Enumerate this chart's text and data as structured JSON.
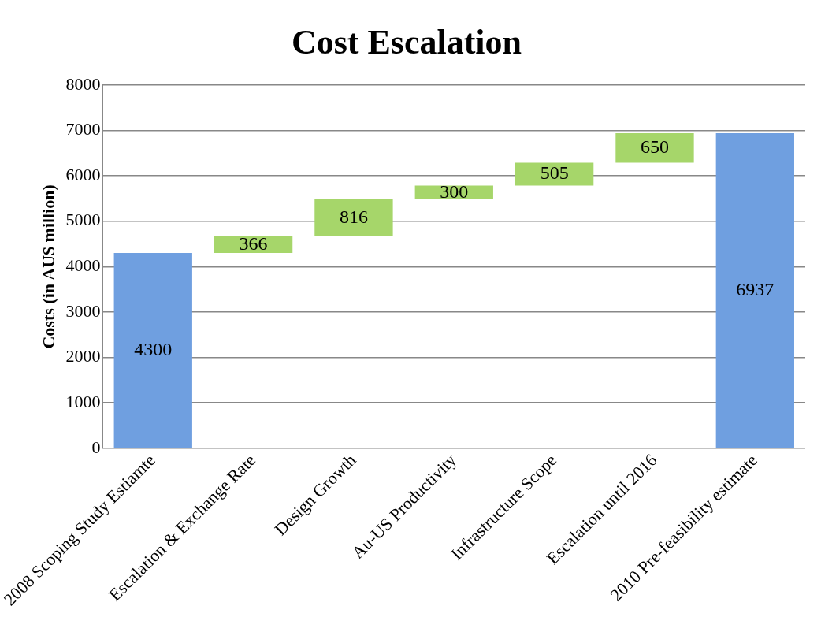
{
  "chart_data": {
    "type": "bar",
    "title": "Cost Escalation",
    "ylabel": "Costs (in AU$ million)",
    "categories": [
      "2008 Scoping Study Estiamte",
      "Escalation & Exchange Rate",
      "Design Growth",
      "Au-US Productivity",
      "Infrastructure Scope",
      "Escalation until 2016",
      "2010 Pre-feasibility estimate"
    ],
    "values": [
      4300,
      366,
      816,
      300,
      505,
      650,
      6937
    ],
    "base": [
      0,
      4300,
      4666,
      5482,
      5782,
      6287,
      0
    ],
    "colors": [
      "#6f9fe0",
      "#a6d66a",
      "#a6d66a",
      "#a6d66a",
      "#a6d66a",
      "#a6d66a",
      "#6f9fe0"
    ],
    "ylim": [
      0,
      8000
    ],
    "yticks": [
      0,
      1000,
      2000,
      3000,
      4000,
      5000,
      6000,
      7000,
      8000
    ],
    "grid": "y",
    "data_labels": true
  }
}
